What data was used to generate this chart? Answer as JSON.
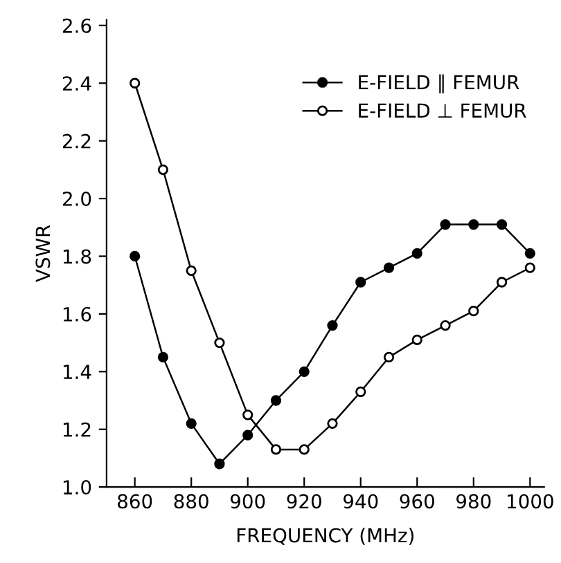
{
  "chart_data": {
    "type": "line",
    "xlabel": "FREQUENCY (MHz)",
    "ylabel": "VSWR",
    "xlim": [
      850,
      1005
    ],
    "xticks": [
      860,
      880,
      900,
      920,
      940,
      960,
      980,
      1000
    ],
    "ylim": [
      1.0,
      2.62
    ],
    "yticks": [
      {
        "value": 1.0,
        "label": "1.0"
      },
      1.2,
      1.4,
      1.6,
      1.8,
      {
        "value": 2.0,
        "label": "2.0"
      },
      2.2,
      2.4,
      2.6
    ],
    "grid": false,
    "legend": "top right",
    "marker": "circle",
    "line_style": "solid",
    "series": [
      {
        "name": "E-FIELD ∥ FEMUR",
        "color": "#000000",
        "x": [
          860,
          870,
          880,
          890,
          900,
          910,
          920,
          930,
          940,
          950,
          960,
          970,
          980,
          990,
          1000
        ],
        "values": [
          1.8,
          1.45,
          1.22,
          1.08,
          1.18,
          1.3,
          1.4,
          1.56,
          1.71,
          1.76,
          1.81,
          1.91,
          1.91,
          1.91,
          1.81
        ]
      },
      {
        "name": "E-FIELD ⊥ FEMUR",
        "color": "#000000",
        "x": [
          860,
          870,
          880,
          890,
          900,
          910,
          920,
          930,
          940,
          950,
          960,
          970,
          980,
          990,
          1000
        ],
        "values": [
          2.4,
          2.1,
          1.75,
          1.5,
          1.25,
          1.13,
          1.13,
          1.22,
          1.33,
          1.45,
          1.51,
          1.56,
          1.61,
          1.71,
          1.76
        ]
      }
    ]
  }
}
